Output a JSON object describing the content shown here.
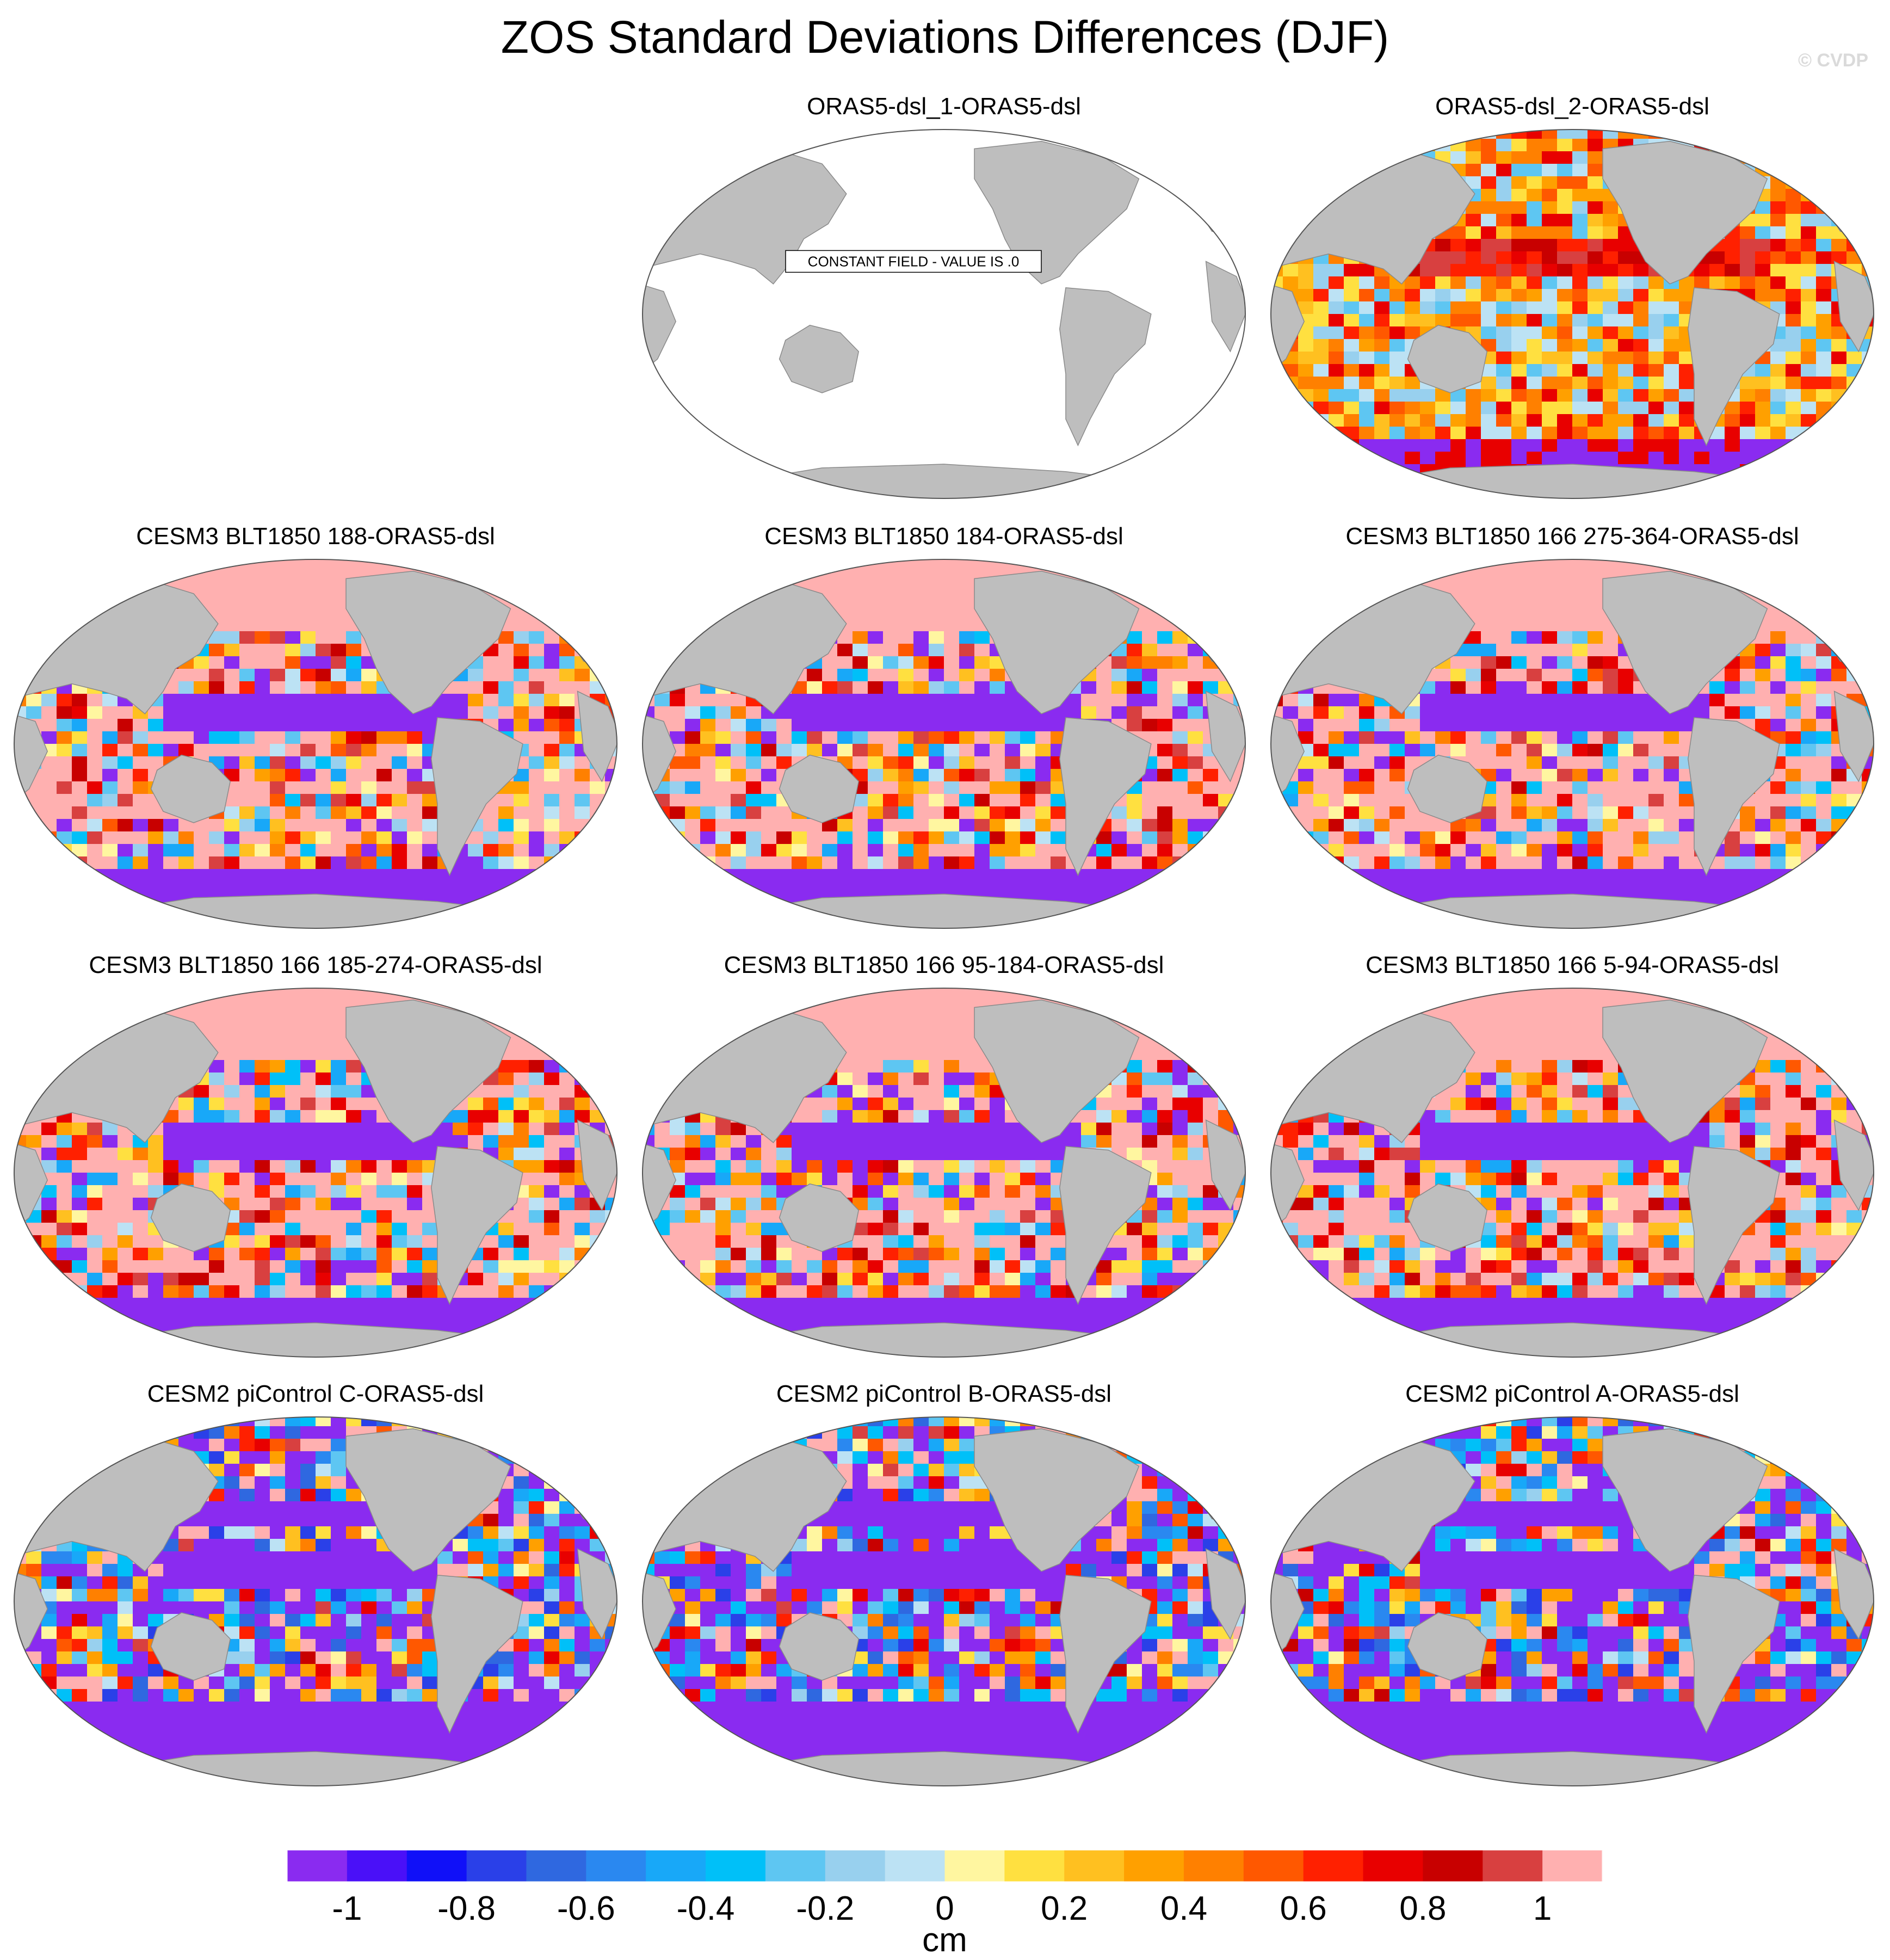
{
  "title": "ZOS Standard Deviations Differences (DJF)",
  "watermark": "© CVDP",
  "constant_field_label": "CONSTANT FIELD - VALUE IS .0",
  "panels": [
    {
      "title": "ORAS5-dsl_1-ORAS5-dsl",
      "pattern": "constant"
    },
    {
      "title": "ORAS5-dsl_2-ORAS5-dsl",
      "pattern": "obs"
    },
    {
      "title": "CESM3 BLT1850 188-ORAS5-dsl",
      "pattern": "cesm3"
    },
    {
      "title": "CESM3 BLT1850 184-ORAS5-dsl",
      "pattern": "cesm3"
    },
    {
      "title": "CESM3 BLT1850 166 275-364-ORAS5-dsl",
      "pattern": "cesm3"
    },
    {
      "title": "CESM3 BLT1850 166 185-274-ORAS5-dsl",
      "pattern": "cesm3"
    },
    {
      "title": "CESM3 BLT1850 166 95-184-ORAS5-dsl",
      "pattern": "cesm3"
    },
    {
      "title": "CESM3 BLT1850 166 5-94-ORAS5-dsl",
      "pattern": "cesm3"
    },
    {
      "title": "CESM2 piControl C-ORAS5-dsl",
      "pattern": "cesm2"
    },
    {
      "title": "CESM2 piControl B-ORAS5-dsl",
      "pattern": "cesm2"
    },
    {
      "title": "CESM2 piControl A-ORAS5-dsl",
      "pattern": "cesm2"
    }
  ],
  "colorbar": {
    "units": "cm",
    "tick_labels": [
      "-1",
      "-0.8",
      "-0.6",
      "-0.4",
      "-0.2",
      "0",
      "0.2",
      "0.4",
      "0.6",
      "0.8",
      "1"
    ],
    "tick_values": [
      -1,
      -0.8,
      -0.6,
      -0.4,
      -0.2,
      0,
      0.2,
      0.4,
      0.6,
      0.8,
      1
    ],
    "colors": [
      "#8a2bf0",
      "#4a10f8",
      "#1010f8",
      "#2a40e8",
      "#2f68e0",
      "#2a88f0",
      "#18a8f8",
      "#00c0f8",
      "#5ec6f2",
      "#98d0ee",
      "#bce2f4",
      "#fff6a0",
      "#ffe040",
      "#ffc020",
      "#ffa000",
      "#ff8000",
      "#ff5800",
      "#ff2000",
      "#e80000",
      "#c80000",
      "#d84040",
      "#ffb0b0"
    ]
  },
  "land_color": "#bebebe",
  "chart_data": {
    "type": "heatmap",
    "title": "ZOS Standard Deviations Differences (DJF)",
    "units": "cm",
    "levels": [
      -1,
      -0.9,
      -0.8,
      -0.7,
      -0.6,
      -0.5,
      -0.4,
      -0.3,
      -0.2,
      -0.1,
      0,
      0.1,
      0.2,
      0.3,
      0.4,
      0.5,
      0.6,
      0.7,
      0.8,
      0.9,
      1
    ],
    "range": [
      -1,
      1
    ],
    "projection": "Robinson, Pacific-centered",
    "note_panel_1": "CONSTANT FIELD - VALUE IS .0"
  }
}
